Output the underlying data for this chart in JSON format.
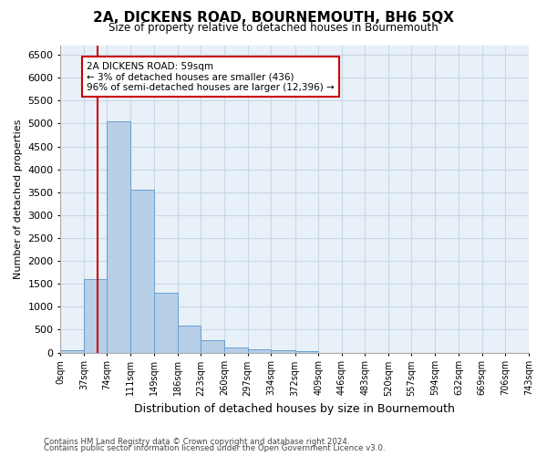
{
  "title": "2A, DICKENS ROAD, BOURNEMOUTH, BH6 5QX",
  "subtitle": "Size of property relative to detached houses in Bournemouth",
  "xlabel": "Distribution of detached houses by size in Bournemouth",
  "ylabel": "Number of detached properties",
  "footnote1": "Contains HM Land Registry data © Crown copyright and database right 2024.",
  "footnote2": "Contains public sector information licensed under the Open Government Licence v3.0.",
  "bar_edges": [
    0,
    37,
    74,
    111,
    149,
    186,
    223,
    260,
    297,
    334,
    372,
    409,
    446,
    483,
    520,
    557,
    594,
    632,
    669,
    706,
    743
  ],
  "bar_labels": [
    "0sqm",
    "37sqm",
    "74sqm",
    "111sqm",
    "149sqm",
    "186sqm",
    "223sqm",
    "260sqm",
    "297sqm",
    "334sqm",
    "372sqm",
    "409sqm",
    "446sqm",
    "483sqm",
    "520sqm",
    "557sqm",
    "594sqm",
    "632sqm",
    "669sqm",
    "706sqm",
    "743sqm"
  ],
  "bar_heights": [
    60,
    1600,
    5050,
    3550,
    1300,
    590,
    270,
    115,
    80,
    55,
    30,
    0,
    0,
    0,
    0,
    0,
    0,
    0,
    0,
    0
  ],
  "bar_color": "#b8cfe8",
  "bar_edge_color": "#6aa0cc",
  "vline_x": 59,
  "vline_color": "#cc0000",
  "ylim": [
    0,
    6700
  ],
  "yticks": [
    0,
    500,
    1000,
    1500,
    2000,
    2500,
    3000,
    3500,
    4000,
    4500,
    5000,
    5500,
    6000,
    6500
  ],
  "annotation_text": "2A DICKENS ROAD: 59sqm\n← 3% of detached houses are smaller (436)\n96% of semi-detached houses are larger (12,396) →",
  "annotation_box_color": "#ffffff",
  "annotation_border_color": "#cc0000",
  "grid_color": "#c8d8e8",
  "bg_color": "#e8f0f8"
}
